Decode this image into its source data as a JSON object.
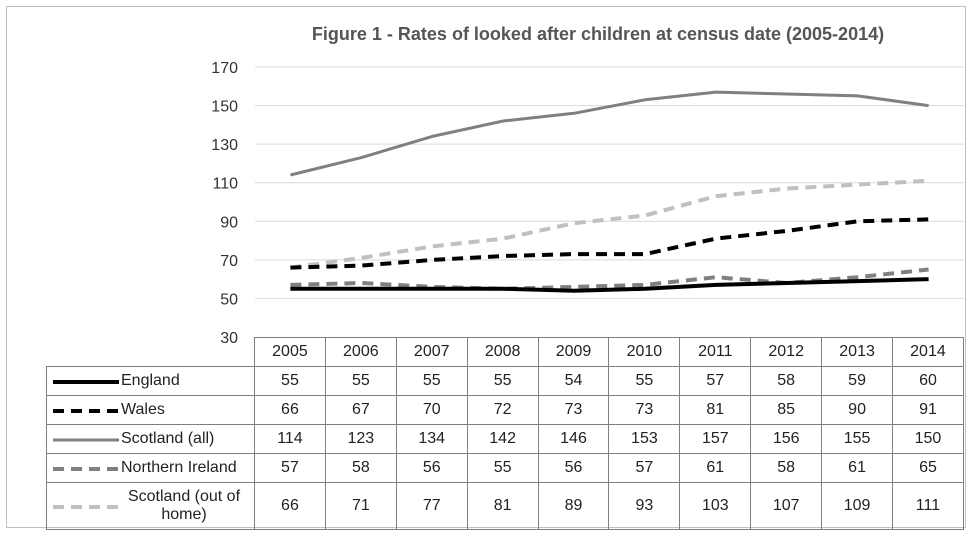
{
  "chart_data": {
    "type": "line",
    "title": "Figure 1 - Rates of looked after children at census date (2005-2014)",
    "categories": [
      "2005",
      "2006",
      "2007",
      "2008",
      "2009",
      "2010",
      "2011",
      "2012",
      "2013",
      "2014"
    ],
    "ylim": [
      30,
      170
    ],
    "yticks": [
      30,
      50,
      70,
      90,
      110,
      130,
      150,
      170
    ],
    "grid": true,
    "legend": "data-table",
    "series": [
      {
        "name": "England",
        "values": [
          55,
          55,
          55,
          55,
          54,
          55,
          57,
          58,
          59,
          60
        ],
        "color": "#000000",
        "dash": "solid"
      },
      {
        "name": "Wales",
        "values": [
          66,
          67,
          70,
          72,
          73,
          73,
          81,
          85,
          90,
          91
        ],
        "color": "#000000",
        "dash": "dashed"
      },
      {
        "name": "Scotland (all)",
        "values": [
          114,
          123,
          134,
          142,
          146,
          153,
          157,
          156,
          155,
          150
        ],
        "color": "#808080",
        "dash": "solid"
      },
      {
        "name": "Northern Ireland",
        "values": [
          57,
          58,
          56,
          55,
          56,
          57,
          61,
          58,
          61,
          65
        ],
        "color": "#808080",
        "dash": "dashed"
      },
      {
        "name": "Scotland (out of home)",
        "values": [
          66,
          71,
          77,
          81,
          89,
          93,
          103,
          107,
          109,
          111
        ],
        "color": "#c0c0c0",
        "dash": "dashed"
      }
    ]
  }
}
